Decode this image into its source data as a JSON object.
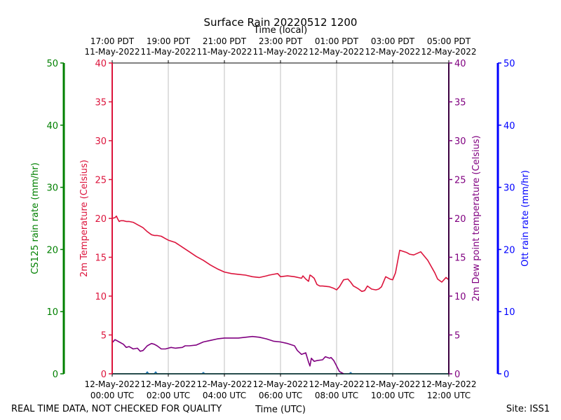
{
  "chart_data": {
    "type": "line",
    "title": "Surface Rain 20220512 1200",
    "top_axis_label": "Time (local)",
    "top_ticks": [
      {
        "line1": "17:00 PDT",
        "line2": "11-May-2022"
      },
      {
        "line1": "19:00 PDT",
        "line2": "11-May-2022"
      },
      {
        "line1": "21:00 PDT",
        "line2": "11-May-2022"
      },
      {
        "line1": "23:00 PDT",
        "line2": "11-May-2022"
      },
      {
        "line1": "01:00 PDT",
        "line2": "12-May-2022"
      },
      {
        "line1": "03:00 PDT",
        "line2": "12-May-2022"
      },
      {
        "line1": "05:00 PDT",
        "line2": "12-May-2022"
      }
    ],
    "xlabel": "Time (UTC)",
    "xlim": [
      0,
      12
    ],
    "x_ticks": [
      {
        "value": 0,
        "line1": "12-May-2022",
        "line2": "00:00 UTC"
      },
      {
        "value": 2,
        "line1": "12-May-2022",
        "line2": "02:00 UTC"
      },
      {
        "value": 4,
        "line1": "12-May-2022",
        "line2": "04:00 UTC"
      },
      {
        "value": 6,
        "line1": "12-May-2022",
        "line2": "06:00 UTC"
      },
      {
        "value": 8,
        "line1": "12-May-2022",
        "line2": "08:00 UTC"
      },
      {
        "value": 10,
        "line1": "12-May-2022",
        "line2": "10:00 UTC"
      },
      {
        "value": 12,
        "line1": "12-May-2022",
        "line2": "12:00 UTC"
      }
    ],
    "axes": {
      "cs125": {
        "label": "CS125 rain rate (mm/hr)",
        "ylim": [
          0,
          50
        ],
        "ticks": [
          0,
          10,
          20,
          30,
          40,
          50
        ],
        "color": "#008000"
      },
      "temp": {
        "label": "2m Temperature (Celsius)",
        "ylim": [
          0,
          40
        ],
        "ticks": [
          0,
          5,
          10,
          15,
          20,
          25,
          30,
          35,
          40
        ],
        "color": "#dc143c"
      },
      "dew": {
        "label": "2m Dew point temperature (Celsius)",
        "ylim": [
          0,
          40
        ],
        "ticks": [
          0,
          5,
          10,
          15,
          20,
          25,
          30,
          35,
          40
        ],
        "color": "#800080"
      },
      "ott": {
        "label": "Ott rain rate (mm/hr)",
        "ylim": [
          0,
          50
        ],
        "ticks": [
          0,
          10,
          20,
          30,
          40,
          50
        ],
        "color": "#0000ff"
      }
    },
    "series": [
      {
        "name": "2m Temperature",
        "axis": "temp",
        "color": "#dc143c",
        "x": [
          0,
          0.1,
          0.15,
          0.2,
          0.25,
          0.3,
          0.4,
          0.5,
          0.6,
          0.75,
          0.9,
          1.0,
          1.1,
          1.25,
          1.4,
          1.5,
          1.6,
          1.75,
          1.9,
          2.0,
          2.25,
          2.5,
          2.75,
          3.0,
          3.25,
          3.5,
          3.75,
          4.0,
          4.25,
          4.5,
          4.75,
          5.0,
          5.25,
          5.5,
          5.6,
          5.75,
          5.9,
          6.0,
          6.25,
          6.5,
          6.75,
          6.8,
          6.9,
          7.0,
          7.05,
          7.1,
          7.2,
          7.3,
          7.4,
          7.5,
          7.75,
          7.9,
          8.0,
          8.1,
          8.25,
          8.4,
          8.5,
          8.6,
          8.75,
          8.9,
          9.0,
          9.1,
          9.25,
          9.4,
          9.5,
          9.6,
          9.75,
          9.9,
          10.0,
          10.1,
          10.25,
          10.5,
          10.6,
          10.75,
          11.0,
          11.25,
          11.5,
          11.6,
          11.75,
          11.9,
          12.0
        ],
        "values": [
          20.0,
          20.1,
          20.3,
          19.9,
          19.6,
          19.7,
          19.7,
          19.6,
          19.6,
          19.5,
          19.2,
          19.0,
          18.8,
          18.3,
          17.9,
          17.8,
          17.8,
          17.7,
          17.4,
          17.2,
          16.9,
          16.3,
          15.7,
          15.1,
          14.6,
          14.0,
          13.5,
          13.1,
          12.9,
          12.8,
          12.7,
          12.5,
          12.4,
          12.6,
          12.7,
          12.8,
          12.9,
          12.5,
          12.6,
          12.5,
          12.3,
          12.6,
          12.2,
          11.9,
          12.7,
          12.6,
          12.3,
          11.5,
          11.3,
          11.3,
          11.2,
          11.0,
          10.8,
          11.2,
          12.1,
          12.2,
          11.8,
          11.3,
          11.0,
          10.6,
          10.7,
          11.3,
          10.9,
          10.8,
          10.9,
          11.2,
          12.5,
          12.2,
          12.1,
          13.0,
          15.9,
          15.6,
          15.4,
          15.3,
          15.7,
          14.6,
          13.0,
          12.2,
          11.8,
          12.4,
          12.1
        ]
      },
      {
        "name": "2m Dew point temperature",
        "axis": "dew",
        "color": "#800080",
        "x": [
          0,
          0.1,
          0.25,
          0.4,
          0.5,
          0.6,
          0.75,
          0.9,
          1.0,
          1.1,
          1.25,
          1.4,
          1.5,
          1.6,
          1.75,
          1.9,
          2.0,
          2.1,
          2.25,
          2.5,
          2.6,
          2.75,
          3.0,
          3.25,
          3.5,
          3.75,
          4.0,
          4.25,
          4.5,
          4.75,
          5.0,
          5.25,
          5.5,
          5.75,
          6.0,
          6.25,
          6.5,
          6.6,
          6.75,
          6.9,
          7.0,
          7.05,
          7.1,
          7.2,
          7.3,
          7.5,
          7.6,
          7.75,
          7.8,
          7.9,
          8.0,
          8.1,
          8.25
        ],
        "values": [
          4.0,
          4.4,
          4.1,
          3.8,
          3.4,
          3.5,
          3.2,
          3.3,
          2.9,
          3.0,
          3.6,
          3.9,
          3.8,
          3.6,
          3.2,
          3.2,
          3.3,
          3.4,
          3.3,
          3.4,
          3.6,
          3.6,
          3.7,
          4.1,
          4.3,
          4.5,
          4.6,
          4.6,
          4.6,
          4.7,
          4.8,
          4.7,
          4.5,
          4.2,
          4.1,
          3.9,
          3.6,
          3.0,
          2.5,
          2.7,
          1.5,
          1.0,
          2.0,
          1.6,
          1.7,
          1.8,
          2.2,
          2.0,
          2.1,
          1.7,
          1.0,
          0.3,
          0.0
        ]
      },
      {
        "name": "CS125 rain rate",
        "axis": "cs125",
        "color": "#008000",
        "x": [
          0,
          12
        ],
        "values": [
          0,
          0
        ]
      },
      {
        "name": "Ott rain rate",
        "axis": "ott",
        "color": "#1f77b4",
        "x": [
          0,
          1.2,
          1.25,
          1.3,
          1.5,
          1.55,
          1.6,
          1.7,
          3.2,
          3.25,
          3.3,
          8.45,
          8.5,
          8.55,
          12
        ],
        "values": [
          0,
          0,
          0.3,
          0,
          0,
          0.3,
          0,
          0,
          0,
          0.2,
          0,
          0,
          0.2,
          0,
          0
        ]
      }
    ],
    "footer_left": "REAL TIME DATA, NOT CHECKED FOR QUALITY",
    "footer_right": "Site: ISS1"
  }
}
